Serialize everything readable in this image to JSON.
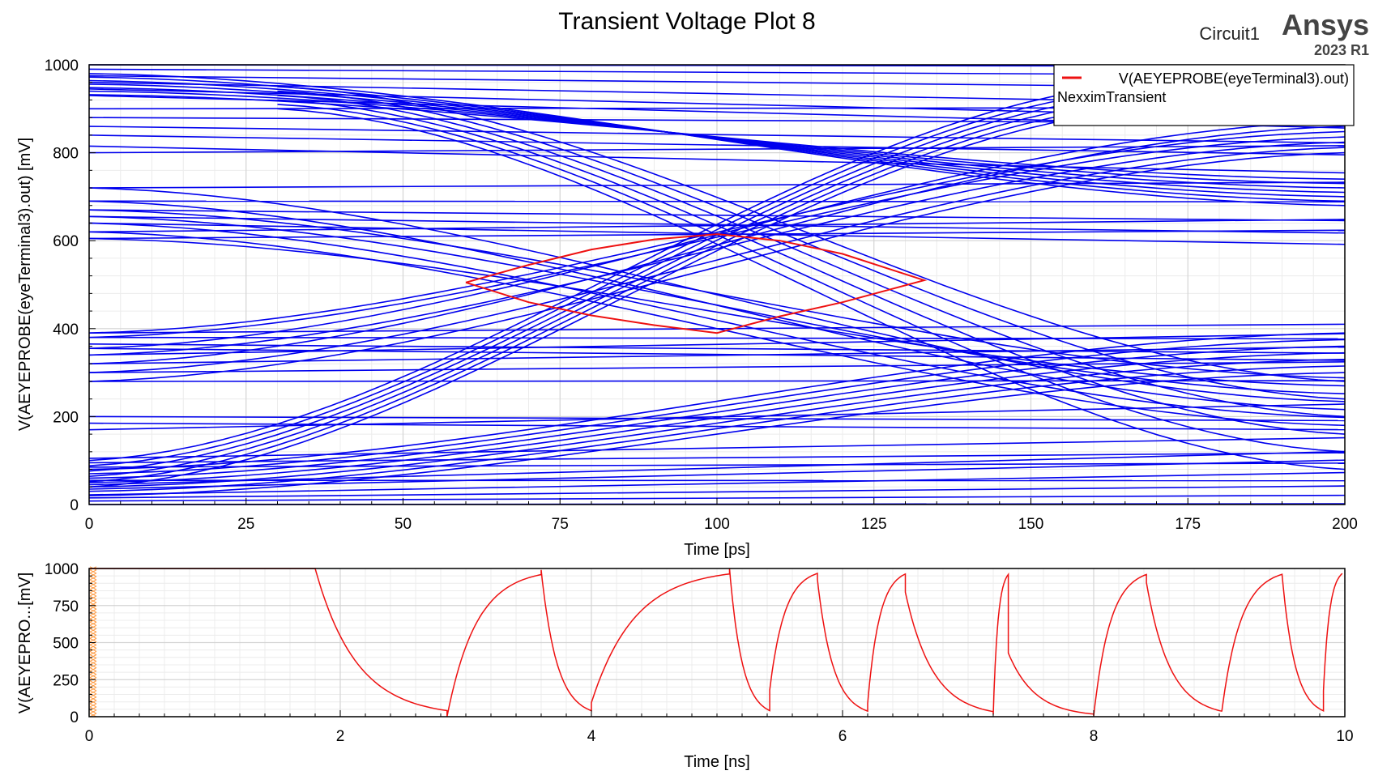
{
  "header": {
    "title": "Transient Voltage Plot 8",
    "design_name": "Circuit1",
    "brand": "Ansys",
    "version": "2023 R1"
  },
  "legend": {
    "series_label": "V(AEYEPROBE(eyeTerminal3).out)",
    "solution_label": "NexximTransient",
    "placement": "top-right"
  },
  "colors": {
    "eye_traces": "#0000ee",
    "eye_mask": "#ee1111",
    "waveform": "#ee1111",
    "grid": "#d4d4d4",
    "marker": "#ff9a40"
  },
  "chart_data": [
    {
      "type": "line",
      "plot": "eye-diagram",
      "title": "Transient Voltage Plot 8",
      "xlabel": "Time [ps]",
      "ylabel": "V(AEYEPROBE(eyeTerminal3).out) [mV]",
      "xlim": [
        0,
        200
      ],
      "ylim": [
        0,
        1000
      ],
      "xticks": [
        0,
        25,
        50,
        75,
        100,
        125,
        150,
        175,
        200
      ],
      "yticks": [
        0,
        200,
        400,
        600,
        800,
        1000
      ],
      "grid": true,
      "levels_mV": [
        0,
        8,
        15,
        22,
        35,
        45,
        55,
        85,
        95,
        105,
        170,
        185,
        200,
        280,
        300,
        320,
        340,
        355,
        365,
        380,
        390,
        605,
        620,
        640,
        655,
        670,
        690,
        720,
        800,
        815,
        840,
        860,
        880,
        900,
        930,
        945,
        960,
        975,
        990,
        1000
      ],
      "eye_contour": {
        "x_ps": [
          60,
          70,
          80,
          90,
          100,
          110,
          120,
          133,
          120,
          110,
          100,
          90,
          80,
          70,
          60
        ],
        "y_mV": [
          505,
          545,
          580,
          603,
          615,
          600,
          570,
          510,
          460,
          428,
          390,
          408,
          430,
          460,
          505
        ]
      }
    },
    {
      "type": "line",
      "plot": "waveform",
      "xlabel": "Time [ns]",
      "ylabel": "V(AEYEPRO...[mV]",
      "xlim": [
        0,
        10
      ],
      "ylim": [
        0,
        1000
      ],
      "xticks": [
        0,
        2,
        4,
        6,
        8,
        10
      ],
      "yticks": [
        0,
        250,
        500,
        750,
        1000
      ],
      "grid": true,
      "segments": [
        {
          "t0": 0.0,
          "t1": 1.8,
          "v0": 1000,
          "target": 1000
        },
        {
          "t0": 1.8,
          "t1": 2.85,
          "v0": 1000,
          "target": 0
        },
        {
          "t0": 2.85,
          "t1": 3.6,
          "v0": 0,
          "target": 1000
        },
        {
          "t0": 3.6,
          "t1": 4.0,
          "v0": 990,
          "target": 0
        },
        {
          "t0": 4.0,
          "t1": 5.1,
          "v0": 95,
          "target": 1000
        },
        {
          "t0": 5.1,
          "t1": 5.42,
          "v0": 1000,
          "target": 0
        },
        {
          "t0": 5.42,
          "t1": 5.8,
          "v0": 180,
          "target": 1000
        },
        {
          "t0": 5.8,
          "t1": 6.2,
          "v0": 925,
          "target": 0
        },
        {
          "t0": 6.2,
          "t1": 6.5,
          "v0": 90,
          "target": 1000
        },
        {
          "t0": 6.5,
          "t1": 7.2,
          "v0": 840,
          "target": 0
        },
        {
          "t0": 7.2,
          "t1": 7.32,
          "v0": 15,
          "target": 1000
        },
        {
          "t0": 7.32,
          "t1": 8.0,
          "v0": 430,
          "target": 0
        },
        {
          "t0": 8.0,
          "t1": 8.42,
          "v0": 5,
          "target": 1000
        },
        {
          "t0": 8.42,
          "t1": 9.02,
          "v0": 905,
          "target": 0
        },
        {
          "t0": 9.02,
          "t1": 9.5,
          "v0": 35,
          "target": 1000
        },
        {
          "t0": 9.5,
          "t1": 9.83,
          "v0": 960,
          "target": 0
        },
        {
          "t0": 9.83,
          "t1": 9.98,
          "v0": 175,
          "target": 1000
        }
      ]
    }
  ]
}
